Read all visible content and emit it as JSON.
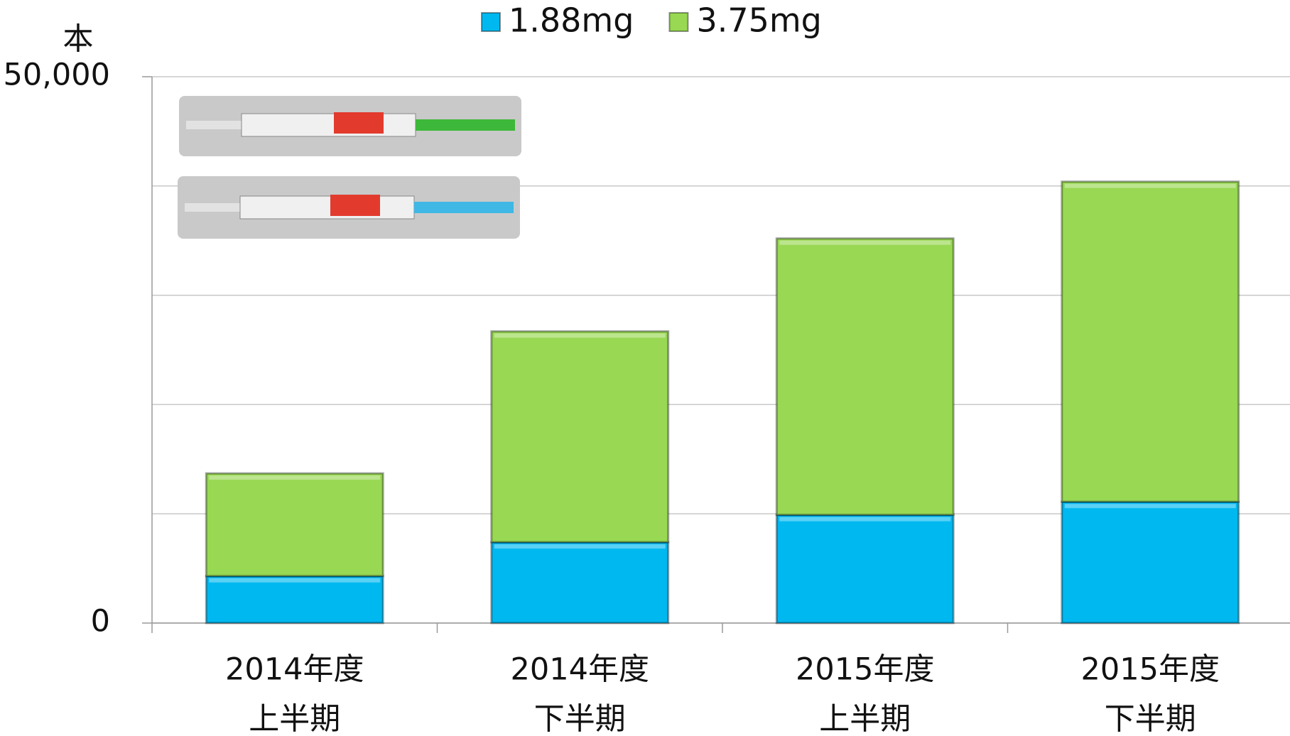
{
  "chart_data": {
    "type": "stacked_bar",
    "y_unit": "本",
    "categories": [
      [
        "2014年度",
        "上半期"
      ],
      [
        "2014年度",
        "下半期"
      ],
      [
        "2015年度",
        "上半期"
      ],
      [
        "2015年度",
        "下半期"
      ]
    ],
    "series": [
      {
        "name": "1.88mg",
        "color": "#00b8f0",
        "values": [
          4300,
          7400,
          9900,
          11100
        ]
      },
      {
        "name": "3.75mg",
        "color": "#98d853",
        "values": [
          9400,
          19300,
          25300,
          29300
        ]
      }
    ],
    "ylim": [
      0,
      50000
    ],
    "yticks": [
      0,
      {
        "value": 50000,
        "label": "50,000"
      }
    ],
    "ygrid": [
      0,
      10000,
      20000,
      30000,
      40000,
      50000
    ],
    "grid": true,
    "legend": "top"
  }
}
